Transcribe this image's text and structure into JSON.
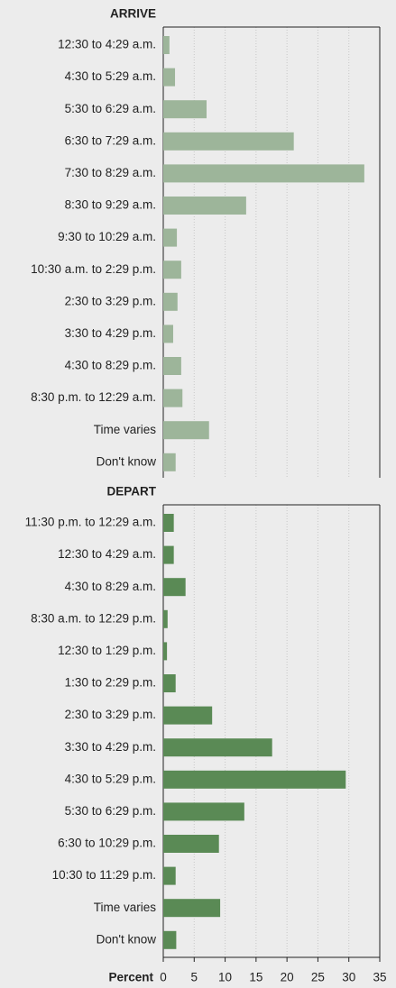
{
  "chart_data": [
    {
      "type": "bar",
      "orientation": "horizontal",
      "title": "ARRIVE",
      "color": "#9db59a",
      "grid": true,
      "categories": [
        "12:30 to 4:29 a.m.",
        "4:30 to 5:29 a.m.",
        "5:30 to 6:29 a.m.",
        "6:30 to 7:29 a.m.",
        "7:30 to 8:29 a.m.",
        "8:30 to 9:29 a.m.",
        "9:30 to 10:29 a.m.",
        "10:30 a.m. to 2:29 p.m.",
        "2:30 to 3:29 p.m.",
        "3:30 to 4:29 p.m.",
        "4:30 to 8:29 p.m.",
        "8:30 p.m. to 12:29 a.m.",
        "Time varies",
        "Don't know"
      ],
      "values": [
        1.0,
        1.9,
        7.0,
        21.1,
        32.5,
        13.4,
        2.2,
        2.9,
        2.3,
        1.6,
        2.9,
        3.1,
        7.4,
        2.0
      ],
      "xlim": [
        0,
        35
      ],
      "xticks": [
        0,
        5,
        10,
        15,
        20,
        25,
        30,
        35
      ]
    },
    {
      "type": "bar",
      "orientation": "horizontal",
      "title": "DEPART",
      "color": "#5a8a55",
      "grid": true,
      "xlabel": "Percent",
      "categories": [
        "11:30 p.m. to 12:29 a.m.",
        "12:30 to 4:29 a.m.",
        "4:30 to 8:29 a.m.",
        "8:30 a.m. to 12:29 p.m.",
        "12:30 to 1:29 p.m.",
        "1:30 to 2:29 p.m.",
        "2:30 to 3:29 p.m.",
        "3:30 to 4:29 p.m.",
        "4:30 to 5:29 p.m.",
        "5:30 to 6:29 p.m.",
        "6:30 to 10:29 p.m.",
        "10:30 to 11:29 p.m.",
        "Time varies",
        "Don't know"
      ],
      "values": [
        1.7,
        1.7,
        3.6,
        0.7,
        0.6,
        2.0,
        7.9,
        17.6,
        29.5,
        13.1,
        9.0,
        2.0,
        9.2,
        2.1
      ],
      "xlim": [
        0,
        35
      ],
      "xticks": [
        0,
        5,
        10,
        15,
        20,
        25,
        30,
        35
      ]
    }
  ]
}
